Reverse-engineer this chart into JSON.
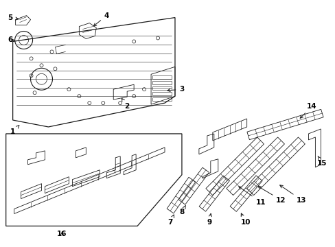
{
  "background_color": "#ffffff",
  "line_color": "#1a1a1a",
  "figsize": [
    4.89,
    3.6
  ],
  "dpi": 100,
  "label_fontsize": 7.5,
  "panel_lw": 0.9,
  "detail_lw": 0.6,
  "thin_lw": 0.4
}
